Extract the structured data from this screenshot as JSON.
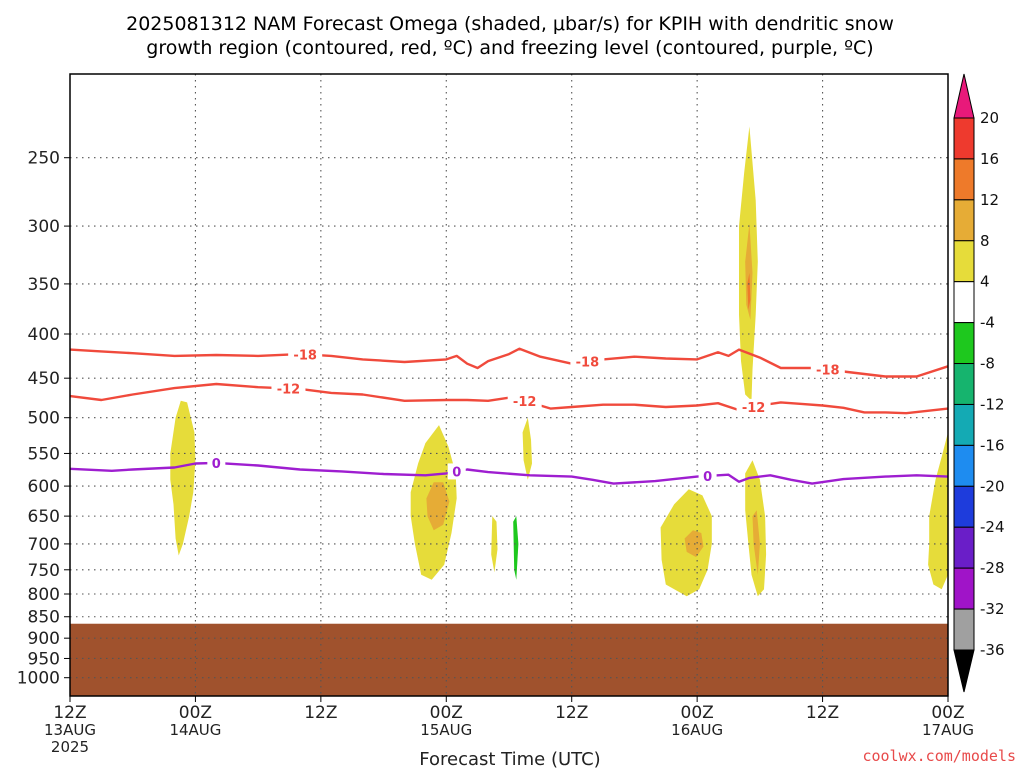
{
  "chart_data": {
    "type": "heatmap",
    "title_lines": [
      "2025081312 NAM Forecast Omega (shaded, μbar/s) for KPIH with dendritic snow",
      "growth region (contoured, red, ºC) and freezing level (contoured, purple, ºC)"
    ],
    "xlabel": "Forecast Time (UTC)",
    "x_hours_range": [
      0,
      84
    ],
    "x_ticks": [
      {
        "hour": 0,
        "lines": [
          "12Z",
          "13AUG",
          "2025"
        ]
      },
      {
        "hour": 12,
        "lines": [
          "00Z",
          "14AUG"
        ]
      },
      {
        "hour": 24,
        "lines": [
          "12Z"
        ]
      },
      {
        "hour": 36,
        "lines": [
          "00Z",
          "15AUG"
        ]
      },
      {
        "hour": 48,
        "lines": [
          "12Z"
        ]
      },
      {
        "hour": 60,
        "lines": [
          "00Z",
          "16AUG"
        ]
      },
      {
        "hour": 72,
        "lines": [
          "12Z"
        ]
      },
      {
        "hour": 84,
        "lines": [
          "00Z",
          "17AUG"
        ]
      }
    ],
    "y_scale": "log-pressure",
    "y_range_hpa": [
      200,
      1050
    ],
    "y_ticks": [
      "250",
      "300",
      "350",
      "400",
      "450",
      "500",
      "550",
      "600",
      "650",
      "700",
      "750",
      "800",
      "850",
      "900",
      "950",
      "1000"
    ],
    "grid": true,
    "colorbar": {
      "levels": [
        "20",
        "16",
        "12",
        "8",
        "4",
        "-4",
        "-8",
        "-12",
        "-16",
        "-20",
        "-24",
        "-28",
        "-32",
        "-36"
      ],
      "colors": [
        "#e8197a",
        "#ee3a2e",
        "#ee7a2a",
        "#e6ac36",
        "#e6dc3a",
        "#ffffff",
        "#1ec81e",
        "#16b46e",
        "#14aab4",
        "#1e8cf0",
        "#1e3cdc",
        "#6a1ec8",
        "#a014c8",
        "#a0a0a0",
        "#000000"
      ]
    },
    "contours": [
      {
        "label": "-18",
        "color": "#f04a3c",
        "points": [
          [
            0,
            417
          ],
          [
            3,
            419
          ],
          [
            6,
            421
          ],
          [
            10,
            424
          ],
          [
            14,
            423
          ],
          [
            18,
            424
          ],
          [
            22,
            422
          ],
          [
            25,
            424
          ],
          [
            28,
            428
          ],
          [
            32,
            431
          ],
          [
            36,
            428
          ],
          [
            37,
            424
          ],
          [
            38,
            433
          ],
          [
            39,
            438
          ],
          [
            40,
            430
          ],
          [
            42,
            422
          ],
          [
            43,
            416
          ],
          [
            45,
            425
          ],
          [
            48,
            433
          ],
          [
            51,
            428
          ],
          [
            54,
            425
          ],
          [
            57,
            427
          ],
          [
            60,
            428
          ],
          [
            62,
            420
          ],
          [
            63,
            424
          ],
          [
            64,
            417
          ],
          [
            66,
            426
          ],
          [
            68,
            438
          ],
          [
            71,
            438
          ],
          [
            74,
            442
          ],
          [
            78,
            448
          ],
          [
            81,
            448
          ],
          [
            84,
            436
          ]
        ],
        "label_hours": [
          22.5,
          49.5,
          72.5
        ]
      },
      {
        "label": "-12",
        "color": "#f04a3c",
        "points": [
          [
            0,
            472
          ],
          [
            3,
            477
          ],
          [
            6,
            470
          ],
          [
            10,
            462
          ],
          [
            14,
            457
          ],
          [
            18,
            461
          ],
          [
            22,
            463
          ],
          [
            25,
            468
          ],
          [
            28,
            470
          ],
          [
            32,
            478
          ],
          [
            36,
            477
          ],
          [
            38,
            477
          ],
          [
            40,
            478
          ],
          [
            42,
            474
          ],
          [
            44,
            480
          ],
          [
            46,
            488
          ],
          [
            48,
            486
          ],
          [
            51,
            483
          ],
          [
            54,
            483
          ],
          [
            57,
            486
          ],
          [
            60,
            484
          ],
          [
            62,
            481
          ],
          [
            64,
            490
          ],
          [
            66,
            484
          ],
          [
            68,
            480
          ],
          [
            70,
            482
          ],
          [
            72,
            484
          ],
          [
            74,
            487
          ],
          [
            76,
            493
          ],
          [
            78,
            493
          ],
          [
            80,
            494
          ],
          [
            84,
            488
          ]
        ],
        "label_hours": [
          20.9,
          43.5,
          65.4
        ]
      },
      {
        "label": "0",
        "color": "#9e1ed0",
        "points": [
          [
            0,
            573
          ],
          [
            4,
            576
          ],
          [
            6,
            574
          ],
          [
            10,
            571
          ],
          [
            12,
            565
          ],
          [
            14,
            564
          ],
          [
            18,
            568
          ],
          [
            22,
            574
          ],
          [
            26,
            577
          ],
          [
            30,
            581
          ],
          [
            34,
            583
          ],
          [
            36,
            580
          ],
          [
            38,
            574
          ],
          [
            40,
            578
          ],
          [
            44,
            583
          ],
          [
            48,
            585
          ],
          [
            50,
            590
          ],
          [
            52,
            596
          ],
          [
            56,
            592
          ],
          [
            60,
            585
          ],
          [
            63,
            582
          ],
          [
            64,
            593
          ],
          [
            65,
            587
          ],
          [
            67,
            583
          ],
          [
            69,
            590
          ],
          [
            71,
            596
          ],
          [
            74,
            589
          ],
          [
            78,
            585
          ],
          [
            81,
            583
          ],
          [
            84,
            585
          ]
        ],
        "label_hours": [
          14.0,
          37.0,
          61.0
        ]
      }
    ],
    "shaded_regions": [
      {
        "value": 4,
        "points": [
          [
            9.6,
            550
          ],
          [
            10.1,
            500
          ],
          [
            10.6,
            478
          ],
          [
            11.2,
            480
          ],
          [
            11.9,
            520
          ],
          [
            12.0,
            560
          ],
          [
            11.8,
            610
          ],
          [
            11.4,
            650
          ],
          [
            10.8,
            700
          ],
          [
            10.4,
            722
          ],
          [
            10.1,
            690
          ],
          [
            9.9,
            630
          ],
          [
            9.6,
            590
          ]
        ]
      },
      {
        "value": 4,
        "points": [
          [
            32.6,
            610
          ],
          [
            33.3,
            565
          ],
          [
            34.0,
            535
          ],
          [
            35.3,
            510
          ],
          [
            36.2,
            540
          ],
          [
            36.9,
            580
          ],
          [
            37.0,
            620
          ],
          [
            36.5,
            680
          ],
          [
            35.8,
            740
          ],
          [
            34.6,
            770
          ],
          [
            33.6,
            760
          ],
          [
            33.0,
            700
          ],
          [
            32.6,
            650
          ]
        ]
      },
      {
        "value": 8,
        "points": [
          [
            34.1,
            620
          ],
          [
            34.8,
            594
          ],
          [
            35.7,
            594
          ],
          [
            36.3,
            625
          ],
          [
            35.7,
            665
          ],
          [
            34.8,
            675
          ],
          [
            34.2,
            650
          ]
        ]
      },
      {
        "value": 4,
        "points": [
          [
            40.4,
            650
          ],
          [
            40.8,
            660
          ],
          [
            40.9,
            710
          ],
          [
            40.6,
            755
          ],
          [
            40.3,
            720
          ]
        ]
      },
      {
        "value": 4,
        "points": [
          [
            43.3,
            520
          ],
          [
            43.8,
            500
          ],
          [
            44.1,
            530
          ],
          [
            44.2,
            565
          ],
          [
            43.8,
            590
          ],
          [
            43.4,
            560
          ]
        ]
      },
      {
        "value": 4,
        "points": [
          [
            56.5,
            670
          ],
          [
            57.8,
            630
          ],
          [
            59.2,
            605
          ],
          [
            60.5,
            615
          ],
          [
            61.4,
            650
          ],
          [
            61.4,
            700
          ],
          [
            61.0,
            750
          ],
          [
            60.2,
            790
          ],
          [
            59.0,
            805
          ],
          [
            57.0,
            780
          ],
          [
            56.6,
            730
          ]
        ]
      },
      {
        "value": 8,
        "points": [
          [
            58.8,
            690
          ],
          [
            59.6,
            675
          ],
          [
            60.4,
            680
          ],
          [
            60.6,
            705
          ],
          [
            59.9,
            725
          ],
          [
            59.0,
            715
          ]
        ]
      },
      {
        "value": 4,
        "points": [
          [
            64.0,
            300
          ],
          [
            64.5,
            260
          ],
          [
            65.0,
            230
          ],
          [
            65.6,
            280
          ],
          [
            65.8,
            330
          ],
          [
            65.6,
            380
          ],
          [
            65.3,
            440
          ],
          [
            65.2,
            478
          ],
          [
            64.6,
            470
          ],
          [
            64.2,
            430
          ],
          [
            64.0,
            380
          ]
        ]
      },
      {
        "value": 8,
        "points": [
          [
            64.6,
            330
          ],
          [
            65.0,
            298
          ],
          [
            65.3,
            340
          ],
          [
            65.1,
            385
          ],
          [
            64.7,
            370
          ]
        ]
      },
      {
        "value": 12,
        "points": [
          [
            64.8,
            350
          ],
          [
            65.0,
            340
          ],
          [
            65.1,
            365
          ],
          [
            64.9,
            375
          ]
        ]
      },
      {
        "value": 4,
        "points": [
          [
            64.6,
            580
          ],
          [
            65.3,
            560
          ],
          [
            66.0,
            590
          ],
          [
            66.5,
            650
          ],
          [
            66.6,
            720
          ],
          [
            66.4,
            790
          ],
          [
            65.8,
            805
          ],
          [
            65.2,
            760
          ],
          [
            64.9,
            700
          ],
          [
            64.6,
            640
          ]
        ]
      },
      {
        "value": 8,
        "points": [
          [
            65.3,
            650
          ],
          [
            65.7,
            640
          ],
          [
            66.0,
            700
          ],
          [
            65.8,
            760
          ],
          [
            65.4,
            700
          ]
        ]
      },
      {
        "value": 4,
        "points": [
          [
            82.2,
            650
          ],
          [
            82.8,
            590
          ],
          [
            83.4,
            555
          ],
          [
            84.0,
            520
          ],
          [
            84.0,
            760
          ],
          [
            83.4,
            790
          ],
          [
            82.6,
            780
          ],
          [
            82.1,
            740
          ],
          [
            82.2,
            700
          ]
        ]
      },
      {
        "value": -4,
        "points": [
          [
            27.0,
            608
          ],
          [
            27.9,
            608
          ],
          [
            27.9,
            628
          ],
          [
            27.0,
            628
          ]
        ]
      },
      {
        "value": -4,
        "points": [
          [
            42.0,
            630
          ],
          [
            42.5,
            600
          ],
          [
            43.0,
            630
          ],
          [
            43.3,
            700
          ],
          [
            43.0,
            780
          ],
          [
            42.6,
            830
          ],
          [
            42.2,
            800
          ],
          [
            42.0,
            720
          ]
        ]
      },
      {
        "value": -8,
        "points": [
          [
            42.4,
            660
          ],
          [
            42.7,
            650
          ],
          [
            42.9,
            700
          ],
          [
            42.7,
            770
          ],
          [
            42.5,
            750
          ]
        ]
      },
      {
        "value": -4,
        "points": [
          [
            63.4,
            540
          ],
          [
            63.8,
            520
          ],
          [
            64.2,
            560
          ],
          [
            64.2,
            650
          ],
          [
            63.9,
            760
          ],
          [
            63.6,
            835
          ],
          [
            63.2,
            780
          ],
          [
            63.0,
            680
          ],
          [
            63.2,
            590
          ]
        ]
      },
      {
        "value": -4,
        "points": [
          [
            66.2,
            600
          ],
          [
            67.0,
            570
          ],
          [
            67.6,
            600
          ],
          [
            67.4,
            630
          ],
          [
            66.9,
            615
          ]
        ]
      },
      {
        "value": -4,
        "points": [
          [
            66.9,
            620
          ],
          [
            67.9,
            560
          ],
          [
            68.1,
            530
          ],
          [
            68.5,
            545
          ],
          [
            68.4,
            640
          ],
          [
            68.2,
            700
          ],
          [
            67.9,
            740
          ],
          [
            67.6,
            690
          ],
          [
            67.2,
            650
          ]
        ]
      },
      {
        "value": -4,
        "points": [
          [
            71.3,
            470
          ],
          [
            71.5,
            445
          ],
          [
            72.5,
            465
          ],
          [
            73.2,
            490
          ],
          [
            73.0,
            540
          ],
          [
            72.2,
            560
          ],
          [
            71.3,
            530
          ]
        ]
      }
    ]
  },
  "credit": "coolwx.com/models"
}
